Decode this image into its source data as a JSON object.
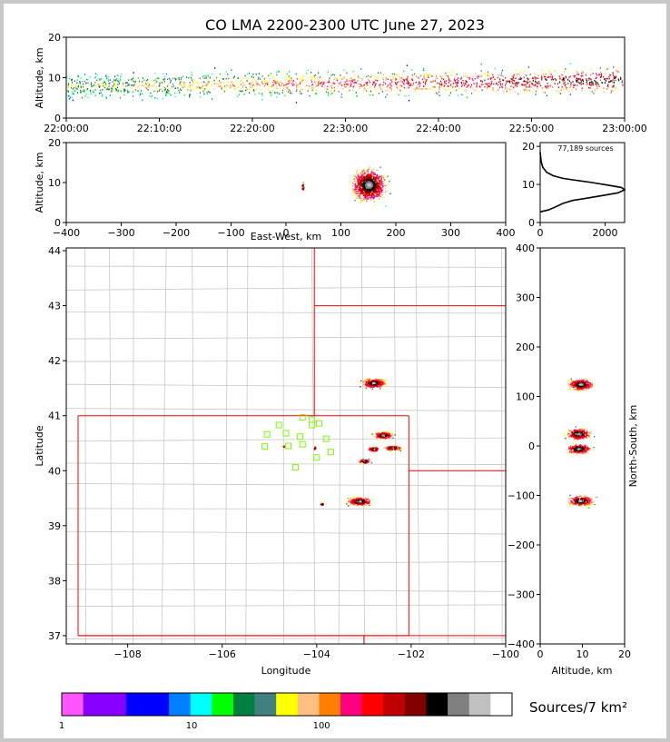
{
  "chart_data": {
    "type": "scatter",
    "title": "CO LMA 2200-2300 UTC June 27, 2023",
    "panels": {
      "time_altitude": {
        "ylabel": "Altitude, km",
        "ylim": [
          0,
          20
        ],
        "yticks": [
          "0",
          "10",
          "20"
        ],
        "xticks": [
          "22:00:00",
          "22:10:00",
          "22:20:00",
          "22:30:00",
          "22:40:00",
          "22:50:00",
          "23:00:00"
        ]
      },
      "ew_altitude": {
        "xlabel": "East-West, km",
        "ylabel": "Altitude, km",
        "xlim": [
          -400,
          400
        ],
        "ylim": [
          0,
          20
        ],
        "xticks": [
          "−400",
          "−300",
          "−200",
          "−100",
          "0",
          "100",
          "200",
          "300",
          "400"
        ],
        "yticks": [
          "0",
          "10",
          "20"
        ]
      },
      "altitude_histogram": {
        "annotation": "77,189 sources",
        "xticks": [
          "0",
          "2000"
        ],
        "yticks": [
          "0",
          "10",
          "20"
        ],
        "xlim": [
          0,
          2600
        ],
        "ylim": [
          0,
          21
        ],
        "profile": [
          [
            0,
            2.8
          ],
          [
            250,
            3.3
          ],
          [
            450,
            4.0
          ],
          [
            700,
            5.0
          ],
          [
            1000,
            5.8
          ],
          [
            1500,
            6.5
          ],
          [
            2000,
            7.2
          ],
          [
            2400,
            7.8
          ],
          [
            2600,
            8.6
          ],
          [
            2500,
            9.2
          ],
          [
            2100,
            9.8
          ],
          [
            1600,
            10.5
          ],
          [
            1100,
            11.1
          ],
          [
            700,
            11.6
          ],
          [
            400,
            12.3
          ],
          [
            200,
            13.2
          ],
          [
            80,
            14.5
          ],
          [
            30,
            16.0
          ],
          [
            10,
            17.5
          ],
          [
            0,
            18.5
          ]
        ]
      },
      "plan_view": {
        "xlabel": "Longitude",
        "ylabel": "Latitude",
        "xlim": [
          -109.3,
          -100.0
        ],
        "ylim": [
          36.85,
          44.05
        ],
        "xticks": [
          "−108",
          "−106",
          "−104",
          "−102",
          "−100"
        ],
        "yticks": [
          "37",
          "38",
          "39",
          "40",
          "41",
          "42",
          "43",
          "44"
        ],
        "storm_clusters": [
          {
            "lon": -102.8,
            "lat": 41.6
          },
          {
            "lon": -102.6,
            "lat": 40.65
          },
          {
            "lon": -102.8,
            "lat": 40.4
          },
          {
            "lon": -102.4,
            "lat": 40.42
          },
          {
            "lon": -103.0,
            "lat": 40.18
          },
          {
            "lon": -103.1,
            "lat": 39.45
          },
          {
            "lon": -103.9,
            "lat": 39.4
          },
          {
            "lon": -104.05,
            "lat": 40.42
          },
          {
            "lon": -104.7,
            "lat": 40.45
          }
        ],
        "stations": [
          {
            "lon": -104.3,
            "lat": 40.97
          },
          {
            "lon": -104.1,
            "lat": 40.93
          },
          {
            "lon": -104.8,
            "lat": 40.83
          },
          {
            "lon": -103.95,
            "lat": 40.86
          },
          {
            "lon": -104.1,
            "lat": 40.83
          },
          {
            "lon": -105.05,
            "lat": 40.66
          },
          {
            "lon": -104.65,
            "lat": 40.68
          },
          {
            "lon": -104.35,
            "lat": 40.62
          },
          {
            "lon": -103.8,
            "lat": 40.58
          },
          {
            "lon": -105.1,
            "lat": 40.44
          },
          {
            "lon": -104.6,
            "lat": 40.45
          },
          {
            "lon": -104.3,
            "lat": 40.48
          },
          {
            "lon": -103.7,
            "lat": 40.34
          },
          {
            "lon": -104.0,
            "lat": 40.24
          },
          {
            "lon": -104.45,
            "lat": 40.06
          }
        ]
      },
      "ns_altitude": {
        "xlabel": "Altitude, km",
        "ylabel": "North-South, km",
        "xlim": [
          0,
          20
        ],
        "ylim": [
          -400,
          400
        ],
        "xticks": [
          "0",
          "10",
          "20"
        ],
        "yticks": [
          "400",
          "300",
          "200",
          "100",
          "0",
          "−100",
          "−200",
          "−300",
          "−400"
        ]
      }
    },
    "colorbar": {
      "label": "Sources/7 km²",
      "ticks": [
        "1",
        "10",
        "100"
      ],
      "colors": [
        "#ff55ff",
        "#8800ff",
        "#8800ff",
        "#0000ff",
        "#0000ff",
        "#0080ff",
        "#00ffff",
        "#00ff00",
        "#008040",
        "#408080",
        "#ffff00",
        "#ffbf80",
        "#ff8000",
        "#ff0080",
        "#ff0000",
        "#c00000",
        "#800000",
        "#000000",
        "#808080",
        "#c0c0c0",
        "#ffffff"
      ]
    }
  }
}
